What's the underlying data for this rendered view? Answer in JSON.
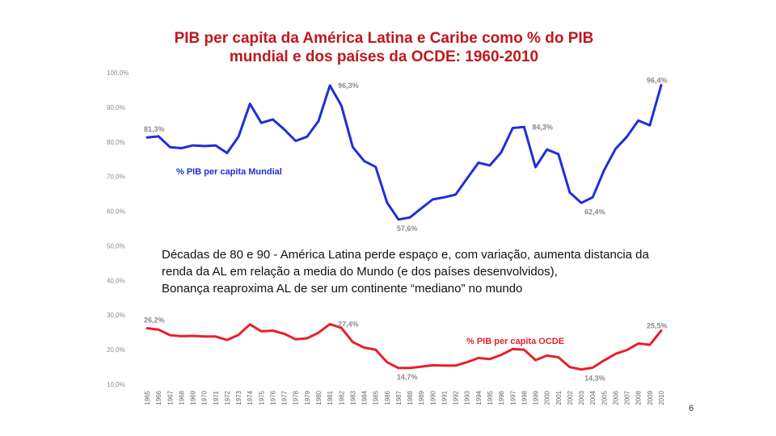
{
  "chart_data": {
    "type": "line",
    "title_line1": "PIB per capita da América Latina e Caribe como % do PIB",
    "title_line2": "mundial e dos países da OCDE: 1960-2010",
    "ylim": [
      10,
      100
    ],
    "y_ticks": [
      "100,0%",
      "90,0%",
      "80,0%",
      "70,0%",
      "60,0%",
      "50,0%",
      "40,0%",
      "30,0%",
      "20,0%",
      "10,0%"
    ],
    "x": [
      1965,
      1966,
      1967,
      1968,
      1969,
      1970,
      1971,
      1972,
      1973,
      1974,
      1975,
      1976,
      1977,
      1978,
      1979,
      1980,
      1981,
      1982,
      1983,
      1984,
      1985,
      1986,
      1987,
      1988,
      1989,
      1990,
      1991,
      1992,
      1993,
      1994,
      1995,
      1996,
      1997,
      1998,
      1999,
      2000,
      2001,
      2002,
      2003,
      2004,
      2005,
      2006,
      2007,
      2008,
      2009,
      2010
    ],
    "x_tick_labels": [
      "1965",
      "1966",
      "1967",
      "1968",
      "1969",
      "1970",
      "1971",
      "1972",
      "1973",
      "1974",
      "1975",
      "1976",
      "1977",
      "1978",
      "1979",
      "1980",
      "1981",
      "1982",
      "1983",
      "1984",
      "1985",
      "1986",
      "1987",
      "1988",
      "1989",
      "1990",
      "1991",
      "1992",
      "1993",
      "1994",
      "1995",
      "1996",
      "1997",
      "1998",
      "1999",
      "2000",
      "2001",
      "2002",
      "2003",
      "2004",
      "2005",
      "2006",
      "2007",
      "2008",
      "2009",
      "2010"
    ],
    "series": [
      {
        "name": "% PIB per capita Mundial",
        "color": "#1f2fd8",
        "values": [
          81.3,
          81.6,
          78.5,
          78.2,
          79.0,
          78.8,
          79.0,
          76.8,
          81.5,
          91.0,
          85.5,
          86.5,
          83.6,
          80.3,
          81.5,
          86.0,
          96.3,
          90.5,
          78.5,
          74.5,
          72.8,
          62.5,
          57.6,
          58.2,
          60.8,
          63.4,
          64.0,
          64.8,
          69.4,
          74.0,
          73.2,
          77.0,
          84.0,
          84.3,
          72.7,
          77.8,
          76.5,
          65.4,
          62.4,
          64.0,
          71.8,
          78.0,
          81.5,
          86.2,
          84.8,
          96.4
        ]
      },
      {
        "name": "% PIB per capita OCDE",
        "color": "#e8202a",
        "values": [
          26.2,
          25.8,
          24.2,
          23.9,
          24.0,
          23.8,
          23.8,
          22.8,
          24.3,
          27.3,
          25.3,
          25.5,
          24.6,
          23.0,
          23.3,
          24.9,
          27.4,
          26.3,
          22.2,
          20.6,
          20.0,
          16.4,
          14.7,
          14.7,
          15.1,
          15.5,
          15.4,
          15.4,
          16.4,
          17.6,
          17.3,
          18.5,
          20.2,
          20.0,
          17.0,
          18.3,
          17.8,
          15.0,
          14.3,
          14.8,
          16.9,
          18.8,
          19.9,
          21.8,
          21.4,
          25.5
        ]
      }
    ],
    "annotations": [
      {
        "series": 0,
        "year": 1965,
        "text": "81,3%",
        "pos": "above"
      },
      {
        "series": 0,
        "year": 1981,
        "text": "96,3%",
        "pos": "right"
      },
      {
        "series": 0,
        "year": 1987,
        "text": "57,6%",
        "pos": "below"
      },
      {
        "series": 0,
        "year": 1998,
        "text": "84,3%",
        "pos": "right"
      },
      {
        "series": 0,
        "year": 2003,
        "text": "62,4%",
        "pos": "below-right"
      },
      {
        "series": 0,
        "year": 2010,
        "text": "96,4%",
        "pos": "above-left"
      },
      {
        "series": 1,
        "year": 1965,
        "text": "26,2%",
        "pos": "above"
      },
      {
        "series": 1,
        "year": 1981,
        "text": "27,4%",
        "pos": "right"
      },
      {
        "series": 1,
        "year": 1987,
        "text": "14,7%",
        "pos": "below"
      },
      {
        "series": 1,
        "year": 2003,
        "text": "14,3%",
        "pos": "below-right"
      },
      {
        "series": 1,
        "year": 2010,
        "text": "25,5%",
        "pos": "above-left"
      }
    ]
  },
  "caption": {
    "line1": "Décadas de 80 e 90  - América Latina perde espaço e, com variação, aumenta distancia da",
    "line2": "renda da AL em relação a media do Mundo (e dos países desenvolvidos),",
    "line3": "Bonança reaproxima AL de ser um  continente “mediano” no mundo"
  },
  "slide_number": "6"
}
